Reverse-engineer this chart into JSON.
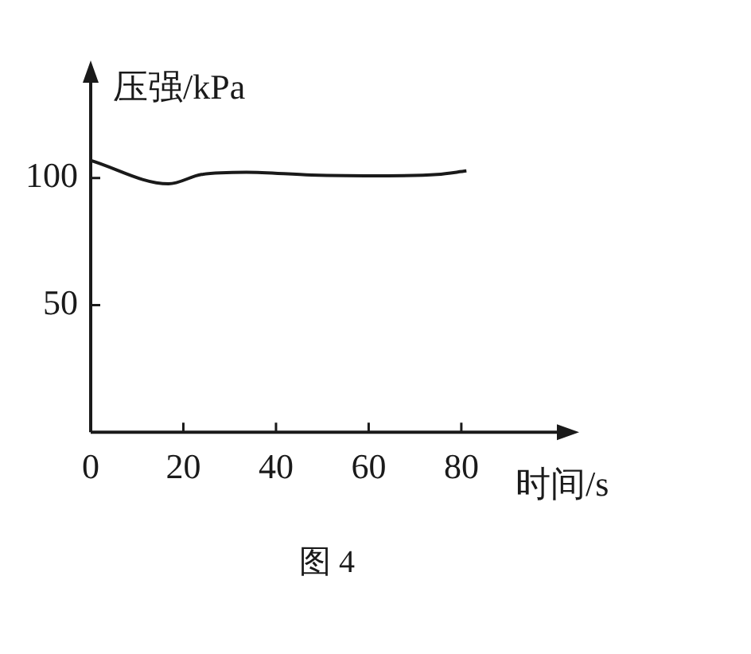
{
  "chart_data": {
    "type": "line",
    "xlabel": "时间/s",
    "ylabel": "压强/kPa",
    "annotations": [
      "图 4"
    ],
    "series": [
      {
        "color": "#1a1a1a",
        "x": [
          0,
          16.8,
          23.9,
          33.6,
          47.7,
          64,
          74.8,
          81.1
        ],
        "values": [
          106.9,
          97.7,
          101.4,
          102.3,
          101.2,
          100.9,
          101.4,
          102.8
        ]
      }
    ],
    "xlim": [
      0,
      102
    ],
    "xticks": [
      0,
      20,
      40,
      60,
      80
    ],
    "ylim": [
      0,
      140
    ],
    "yticks": [
      50,
      100
    ],
    "grid": false,
    "legend": false,
    "marker": "none",
    "line_style": "solid"
  }
}
